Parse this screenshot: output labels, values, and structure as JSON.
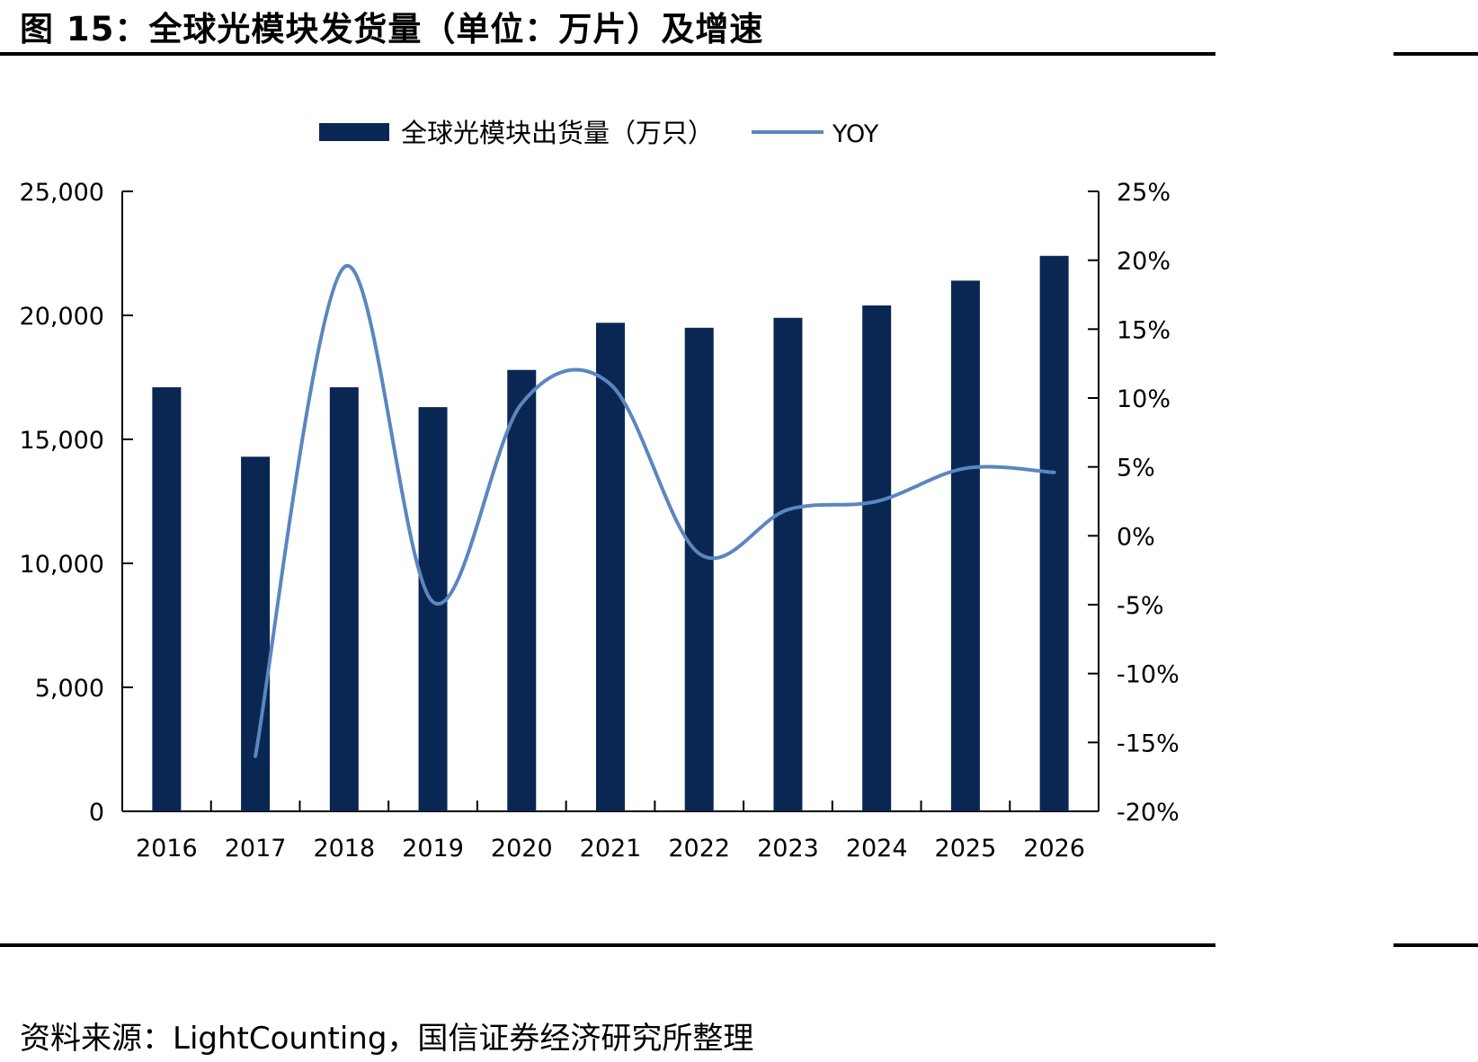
{
  "figure": {
    "title": "图 15：全球光模块发货量（单位：万片）及增速",
    "source": "资料来源：LightCounting，国信证券经济研究所整理"
  },
  "colors": {
    "bar": "#0a2754",
    "line": "#5b86bf",
    "axis": "#000000"
  },
  "chart_data": {
    "type": "bar",
    "categories": [
      "2016",
      "2017",
      "2018",
      "2019",
      "2020",
      "2021",
      "2022",
      "2023",
      "2024",
      "2025",
      "2026"
    ],
    "series": [
      {
        "name": "全球光模块出货量（万只）",
        "type": "bar",
        "axis": "left",
        "values": [
          17100,
          14300,
          17100,
          16300,
          17800,
          19700,
          19500,
          19900,
          20400,
          21400,
          22400
        ]
      },
      {
        "name": "YOY",
        "type": "line",
        "axis": "right",
        "values": [
          null,
          -16.0,
          19.5,
          -4.8,
          9.6,
          11.0,
          -1.3,
          1.9,
          2.5,
          4.9,
          4.6
        ]
      }
    ],
    "y_left": {
      "ylim": [
        0,
        25000
      ],
      "ticks": [
        "0",
        "5,000",
        "10,000",
        "15,000",
        "20,000",
        "25,000"
      ]
    },
    "y_right": {
      "ylim": [
        -20,
        25
      ],
      "ticks": [
        "-20%",
        "-15%",
        "-10%",
        "-5%",
        "0%",
        "5%",
        "10%",
        "15%",
        "20%",
        "25%"
      ]
    },
    "legend_position": "top-center",
    "grid": false
  }
}
